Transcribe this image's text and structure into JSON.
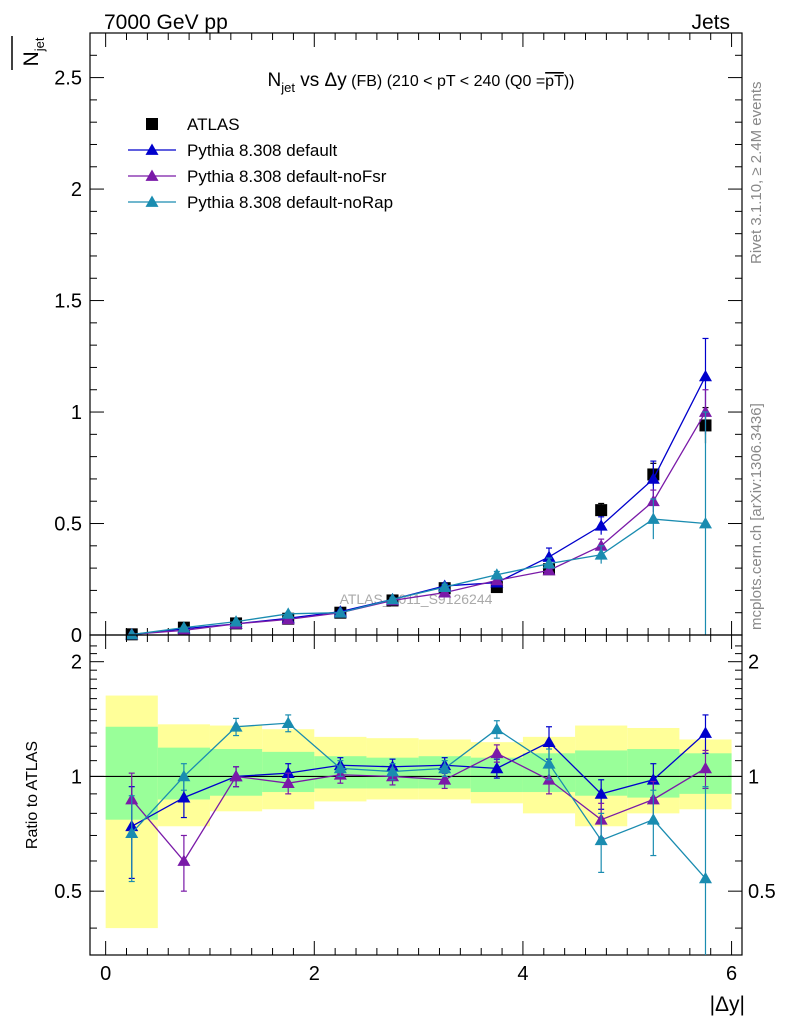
{
  "header": {
    "left": "7000 GeV pp",
    "right": "Jets"
  },
  "title": {
    "main_prefix": "N",
    "main_sub": "jet",
    "main_suffix": " vs Δy",
    "small": " (FB) (210 < pT < 240 (Q0 =",
    "overline": "pT",
    "close": "))"
  },
  "side_labels": {
    "rivet": "Rivet 3.1.10, ≥ 2.4M events",
    "mcplots": "mcplots.cern.ch [arXiv:1306.3436]"
  },
  "watermark": "ATLAS_2011_S9126244",
  "ylabel_top": "N",
  "ylabel_top_sub": "jet",
  "ylabel_ratio": "Ratio to ATLAS",
  "xlabel": "|Δy|",
  "chart_data": [
    {
      "type": "scatter",
      "panel": "main",
      "xlim": [
        -0.15,
        6.1
      ],
      "ylim": [
        0,
        2.7
      ],
      "xticks": [
        "0",
        "2",
        "4",
        "6"
      ],
      "yticks": [
        "0",
        "0.5",
        "1",
        "1.5",
        "2",
        "2.5"
      ],
      "legend_position": "top-left",
      "x": [
        0.25,
        0.75,
        1.25,
        1.75,
        2.25,
        2.75,
        3.25,
        3.75,
        4.25,
        4.75,
        5.25,
        5.75
      ],
      "x_bin_edges": [
        0,
        0.5,
        1.0,
        1.5,
        2.0,
        2.5,
        3.0,
        3.5,
        4.0,
        4.5,
        5.0,
        5.5,
        6.0
      ],
      "series": [
        {
          "name": "ATLAS",
          "marker": "square",
          "color": "#000000",
          "values": [
            0.003,
            0.033,
            0.052,
            0.073,
            0.1,
            0.155,
            0.21,
            0.215,
            0.295,
            0.56,
            0.72,
            0.94
          ],
          "errors": [
            0.001,
            0.003,
            0.004,
            0.005,
            0.006,
            0.008,
            0.01,
            0.012,
            0.02,
            0.03,
            0.05,
            0.08
          ]
        },
        {
          "name": "Pythia 8.308 default",
          "marker": "triangle",
          "color": "#0000cc",
          "values": [
            0.002,
            0.028,
            0.05,
            0.075,
            0.105,
            0.16,
            0.22,
            0.235,
            0.35,
            0.49,
            0.7,
            1.16
          ],
          "errors": [
            0.001,
            0.002,
            0.003,
            0.004,
            0.005,
            0.008,
            0.012,
            0.015,
            0.04,
            0.04,
            0.08,
            0.17
          ]
        },
        {
          "name": "Pythia 8.308 default-noFsr",
          "marker": "triangle",
          "color": "#7a1aa8",
          "values": [
            0.003,
            0.021,
            0.05,
            0.07,
            0.1,
            0.155,
            0.19,
            0.245,
            0.29,
            0.4,
            0.6,
            1.0
          ],
          "errors": [
            0.001,
            0.002,
            0.003,
            0.004,
            0.005,
            0.008,
            0.012,
            0.015,
            0.02,
            0.03,
            0.05,
            0.1
          ]
        },
        {
          "name": "Pythia 8.308 default-noRap",
          "marker": "triangle",
          "color": "#1a8cb0",
          "values": [
            0.002,
            0.033,
            0.06,
            0.095,
            0.1,
            0.16,
            0.215,
            0.27,
            0.32,
            0.36,
            0.52,
            0.5
          ],
          "errors": [
            0.001,
            0.003,
            0.004,
            0.006,
            0.006,
            0.008,
            0.012,
            0.015,
            0.025,
            0.04,
            0.09,
            0.5
          ]
        }
      ]
    },
    {
      "type": "scatter",
      "panel": "ratio",
      "xlim": [
        -0.15,
        6.1
      ],
      "ylim": [
        0.34,
        2.35
      ],
      "xticks": [
        "0",
        "2",
        "4",
        "6"
      ],
      "yticks": [
        "0.5",
        "1",
        "2"
      ],
      "reference_line": 1,
      "band_yellow": {
        "lo": [
          0.4,
          0.74,
          0.81,
          0.82,
          0.86,
          0.87,
          0.87,
          0.85,
          0.8,
          0.74,
          0.8,
          0.82
        ],
        "hi": [
          1.63,
          1.37,
          1.36,
          1.33,
          1.27,
          1.26,
          1.25,
          1.23,
          1.27,
          1.36,
          1.34,
          1.25
        ]
      },
      "band_green": {
        "lo": [
          0.77,
          0.87,
          0.89,
          0.91,
          0.93,
          0.93,
          0.93,
          0.91,
          0.91,
          0.89,
          0.88,
          0.9
        ],
        "hi": [
          1.35,
          1.19,
          1.18,
          1.16,
          1.13,
          1.12,
          1.13,
          1.12,
          1.15,
          1.17,
          1.18,
          1.15
        ]
      },
      "series": [
        {
          "name": "Pythia 8.308 default",
          "color": "#0000cc",
          "values": [
            0.74,
            0.88,
            1.0,
            1.02,
            1.07,
            1.06,
            1.07,
            1.05,
            1.23,
            0.9,
            0.98,
            1.3
          ],
          "errors": [
            0.2,
            0.1,
            0.06,
            0.06,
            0.05,
            0.05,
            0.05,
            0.06,
            0.12,
            0.08,
            0.1,
            0.15
          ]
        },
        {
          "name": "Pythia 8.308 default-noFsr",
          "color": "#7a1aa8",
          "values": [
            0.87,
            0.6,
            1.0,
            0.96,
            1.01,
            1.0,
            0.98,
            1.15,
            0.98,
            0.77,
            0.87,
            1.05
          ],
          "errors": [
            0.15,
            0.1,
            0.06,
            0.06,
            0.05,
            0.05,
            0.05,
            0.06,
            0.08,
            0.08,
            0.1,
            0.12
          ]
        },
        {
          "name": "Pythia 8.308 default-noRap",
          "color": "#1a8cb0",
          "values": [
            0.71,
            1.0,
            1.35,
            1.38,
            1.05,
            1.03,
            1.05,
            1.33,
            1.08,
            0.68,
            0.77,
            0.54
          ],
          "errors": [
            0.18,
            0.08,
            0.07,
            0.07,
            0.05,
            0.05,
            0.05,
            0.07,
            0.1,
            0.12,
            0.15,
            0.4
          ]
        }
      ]
    }
  ]
}
